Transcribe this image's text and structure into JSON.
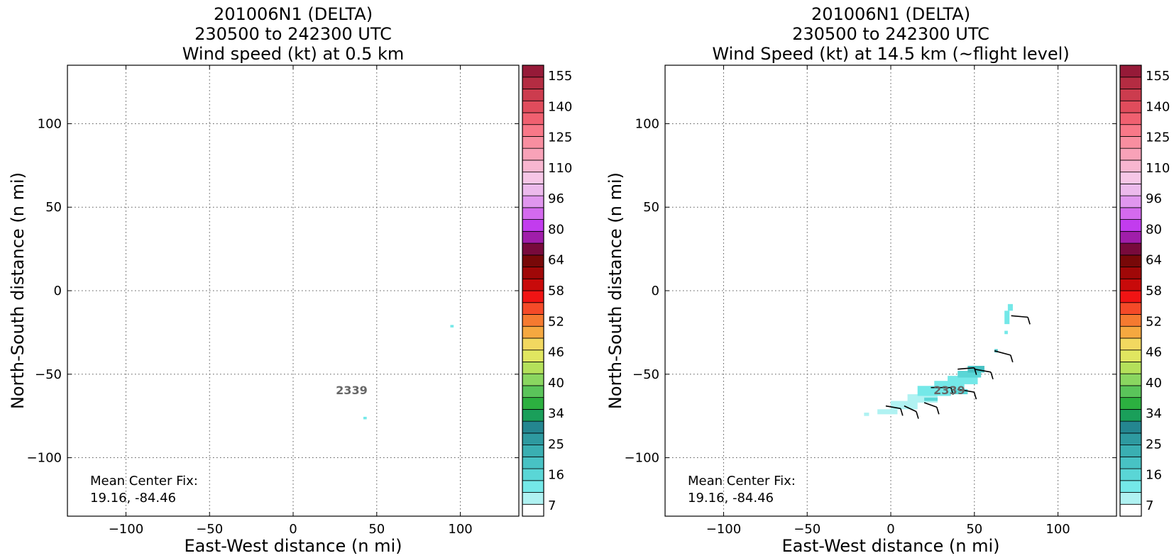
{
  "colorbar": {
    "ticks": [
      "155",
      "140",
      "125",
      "110",
      "96",
      "80",
      "64",
      "58",
      "52",
      "46",
      "40",
      "34",
      "25",
      "16",
      "7"
    ],
    "colors": [
      "#ffffff",
      "#b0f2f2",
      "#74e8e8",
      "#5ad6d6",
      "#48c2c4",
      "#3aafb2",
      "#2e9aa0",
      "#248690",
      "#1a9f5a",
      "#2cb040",
      "#5ac45a",
      "#8ad660",
      "#b4e05a",
      "#e0e660",
      "#f2d860",
      "#f5a840",
      "#f57a30",
      "#f54a28",
      "#f01414",
      "#c80a0a",
      "#a00808",
      "#780808",
      "#780a3c",
      "#a01eaa",
      "#c23cee",
      "#d46aee",
      "#e096ee",
      "#ecbaec",
      "#f6c6e6",
      "#f8b6d0",
      "#f8a2b8",
      "#f88ea0",
      "#f87888",
      "#f06070",
      "#e04c5c",
      "#cc3c4e",
      "#b42c42",
      "#961a38"
    ]
  },
  "chart_data": [
    {
      "type": "heatmap",
      "title": [
        "201006N1 (DELTA)",
        "230500 to 242300 UTC",
        "Wind speed (kt) at 0.5 km"
      ],
      "xlabel": "East-West distance (n mi)",
      "ylabel": "North-South distance (n mi)",
      "xlim": [
        -135,
        135
      ],
      "ylim": [
        -135,
        135
      ],
      "xticks": [
        -100,
        -50,
        0,
        50,
        100
      ],
      "xtick_labels": [
        "−100",
        "−50",
        "0",
        "50",
        "100"
      ],
      "yticks": [
        100,
        50,
        0,
        -50,
        -100
      ],
      "ytick_labels": [
        "100",
        "50",
        "0",
        "−50",
        "−100"
      ],
      "grid": true,
      "storm_label": "2339",
      "storm_label_pos": [
        35,
        -62
      ],
      "mean_center_fix": [
        "Mean Center Fix:",
        "19.16, -84.46"
      ],
      "cells": [
        {
          "x": 94,
          "y": -22,
          "w": 2,
          "h": 1.5,
          "color": "#74e8e8"
        },
        {
          "x": 42,
          "y": -77,
          "w": 2,
          "h": 1.5,
          "color": "#74e8e8"
        }
      ],
      "barbs": []
    },
    {
      "type": "heatmap",
      "title": [
        "201006N1 (DELTA)",
        "230500 to 242300 UTC",
        "Wind Speed (kt) at 14.5 km (~flight level)"
      ],
      "xlabel": "East-West distance (n mi)",
      "ylabel": "North-South distance (n mi)",
      "xlim": [
        -135,
        135
      ],
      "ylim": [
        -135,
        135
      ],
      "xticks": [
        -100,
        -50,
        0,
        50,
        100
      ],
      "xtick_labels": [
        "−100",
        "−50",
        "0",
        "50",
        "100"
      ],
      "yticks": [
        100,
        50,
        0,
        -50,
        -100
      ],
      "ytick_labels": [
        "100",
        "50",
        "0",
        "−50",
        "−100"
      ],
      "grid": true,
      "storm_label": "2339",
      "storm_label_pos": [
        35,
        -62
      ],
      "mean_center_fix": [
        "Mean Center Fix:",
        "19.16, -84.46"
      ],
      "cells": [
        {
          "x": -16,
          "y": -75,
          "w": 3,
          "h": 2,
          "color": "#b0f2f2"
        },
        {
          "x": -8,
          "y": -74,
          "w": 12,
          "h": 3,
          "color": "#b0f2f2"
        },
        {
          "x": 0,
          "y": -71,
          "w": 16,
          "h": 5,
          "color": "#b0f2f2"
        },
        {
          "x": 10,
          "y": -67,
          "w": 18,
          "h": 5,
          "color": "#b0f2f2"
        },
        {
          "x": 16,
          "y": -63,
          "w": 20,
          "h": 6,
          "color": "#74e8e8"
        },
        {
          "x": 26,
          "y": -59,
          "w": 18,
          "h": 5,
          "color": "#74e8e8"
        },
        {
          "x": 34,
          "y": -56,
          "w": 18,
          "h": 5,
          "color": "#74e8e8"
        },
        {
          "x": 40,
          "y": -52,
          "w": 14,
          "h": 4,
          "color": "#5ad6d6"
        },
        {
          "x": 46,
          "y": -49,
          "w": 10,
          "h": 4,
          "color": "#48c2c4"
        },
        {
          "x": 36,
          "y": -62,
          "w": 10,
          "h": 3,
          "color": "#5ad6d6"
        },
        {
          "x": 20,
          "y": -66,
          "w": 8,
          "h": 2,
          "color": "#5ad6d6"
        },
        {
          "x": 62,
          "y": -37,
          "w": 2,
          "h": 2,
          "color": "#48c2c4"
        },
        {
          "x": 68,
          "y": -20,
          "w": 3,
          "h": 8,
          "color": "#74e8e8"
        },
        {
          "x": 70,
          "y": -12,
          "w": 3,
          "h": 4,
          "color": "#74e8e8"
        },
        {
          "x": 68,
          "y": -26,
          "w": 2,
          "h": 2,
          "color": "#74e8e8"
        }
      ],
      "barbs": [
        {
          "x": -3,
          "y": -69,
          "angle": -10,
          "len": 9
        },
        {
          "x": 8,
          "y": -69,
          "angle": -25,
          "len": 8
        },
        {
          "x": 20,
          "y": -67,
          "angle": -20,
          "len": 8
        },
        {
          "x": 24,
          "y": -58,
          "angle": 0,
          "len": 12
        },
        {
          "x": 40,
          "y": -59,
          "angle": -10,
          "len": 10
        },
        {
          "x": 40,
          "y": -47,
          "angle": 5,
          "len": 10
        },
        {
          "x": 50,
          "y": -47,
          "angle": -10,
          "len": 10
        },
        {
          "x": 62,
          "y": -36,
          "angle": -15,
          "len": 10
        },
        {
          "x": 72,
          "y": -15,
          "angle": -5,
          "len": 10
        }
      ]
    }
  ]
}
